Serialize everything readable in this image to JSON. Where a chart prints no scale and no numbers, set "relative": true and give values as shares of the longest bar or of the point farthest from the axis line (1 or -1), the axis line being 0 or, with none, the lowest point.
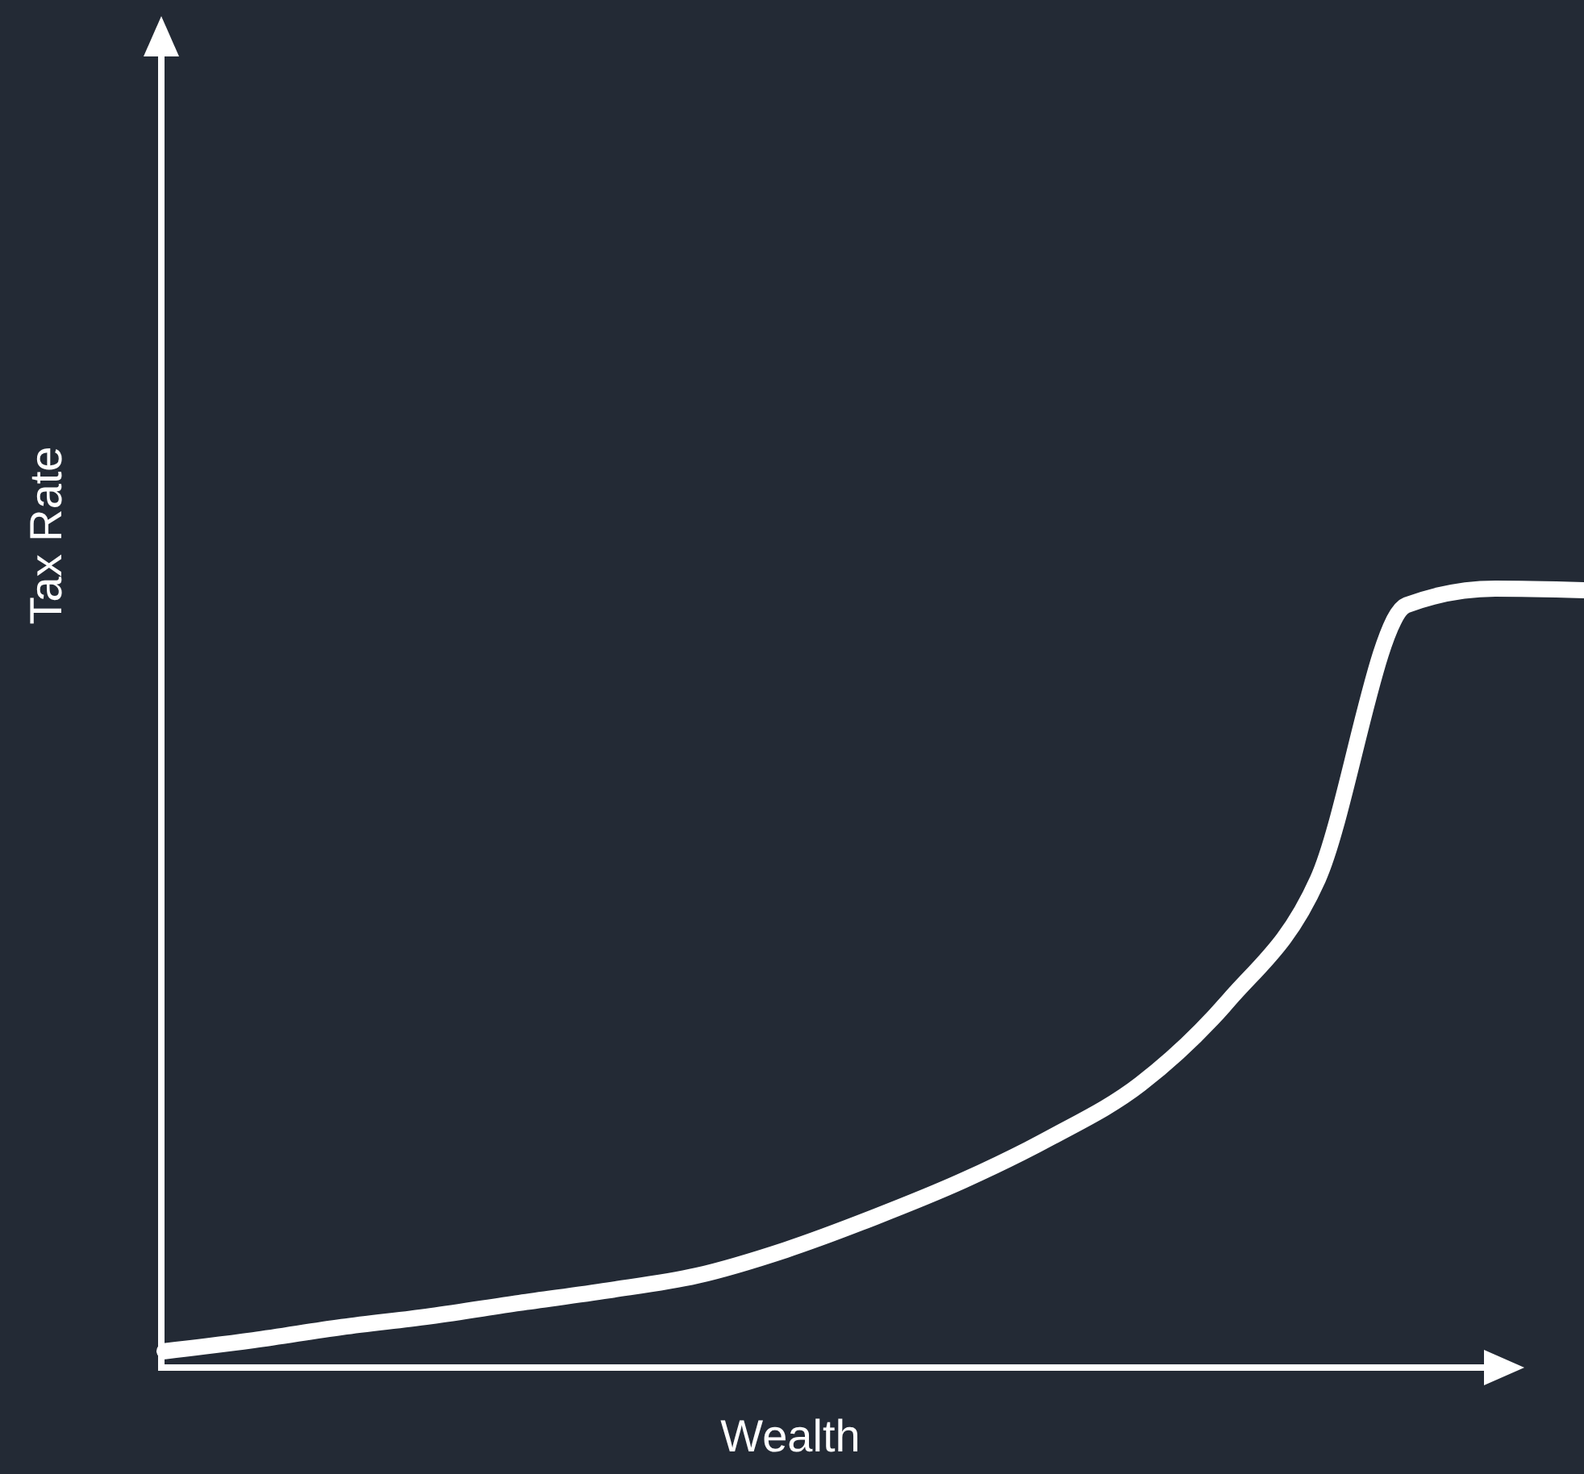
{
  "chart_data": {
    "type": "line",
    "relative": true,
    "xlabel": "Wealth",
    "ylabel": "Tax Rate",
    "categories": [
      null,
      null,
      null,
      null,
      null,
      null,
      null,
      null,
      null,
      null,
      null,
      null,
      null,
      null,
      null,
      null,
      null
    ],
    "series": [
      {
        "color": "#ffffff",
        "values": [
          0.021,
          0.035,
          0.052,
          0.066,
          0.083,
          0.099,
          0.118,
          0.151,
          0.193,
          0.24,
          0.296,
          0.364,
          0.472,
          0.627,
          0.979,
          1,
          0.998
        ]
      }
    ]
  }
}
